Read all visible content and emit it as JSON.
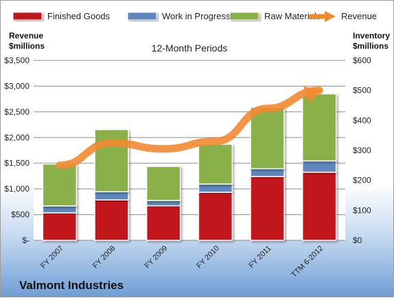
{
  "company": "Valmont Industries",
  "chart_data": {
    "type": "bar",
    "stacked": true,
    "title": "12-Month Periods",
    "ylabel_left": "Revenue\n$millions",
    "ylabel_right": "Inventory\n$millions",
    "categories": [
      "FY 2007",
      "FY 2008",
      "FY 2009",
      "FY 2010",
      "FY 2011",
      "TTM 6-2012"
    ],
    "series": [
      {
        "name": "Finished Goods",
        "type": "bar",
        "axis": "left",
        "color": "#c0161c",
        "values": [
          535,
          785,
          672,
          935,
          1240,
          1325
        ]
      },
      {
        "name": "Work in Progress",
        "type": "bar",
        "axis": "left",
        "color": "#5f87bd",
        "values": [
          135,
          160,
          105,
          160,
          155,
          220
        ]
      },
      {
        "name": "Raw Materials",
        "type": "bar",
        "axis": "left",
        "color": "#8ab04a",
        "values": [
          815,
          1210,
          660,
          775,
          1190,
          1305
        ]
      },
      {
        "name": "Revenue",
        "type": "line",
        "axis": "right",
        "color": "#f28a30",
        "values": [
          250,
          325,
          305,
          330,
          440,
          500
        ]
      }
    ],
    "yaxis_left": {
      "min": 0,
      "max": 3500,
      "step": 500,
      "tick_labels": [
        "$-",
        "$500",
        "$1,000",
        "$1,500",
        "$2,000",
        "$2,500",
        "$3,000",
        "$3,500"
      ]
    },
    "yaxis_right": {
      "min": 0,
      "max": 600,
      "step": 100,
      "tick_labels": [
        "$0",
        "$100",
        "$200",
        "$300",
        "$400",
        "$500",
        "$600"
      ]
    },
    "grid": true,
    "legend_position": "top"
  }
}
